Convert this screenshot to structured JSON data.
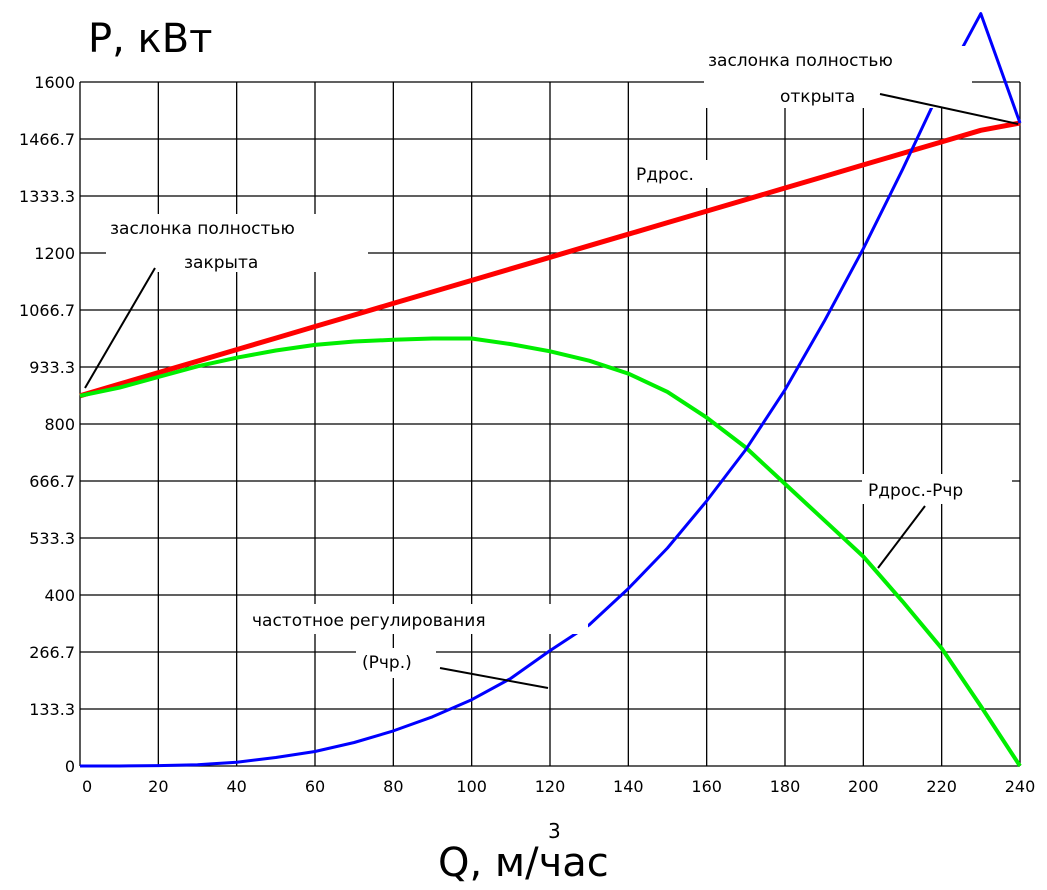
{
  "chart_data": {
    "type": "line",
    "ylabel": "P, кВт",
    "xlabel": "Q, м/час",
    "xlabel_superscript": "3",
    "xlim": [
      0,
      240
    ],
    "ylim": [
      0,
      1600
    ],
    "x_ticks": [
      "0",
      "20",
      "40",
      "60",
      "80",
      "100",
      "120",
      "140",
      "160",
      "180",
      "200",
      "220",
      "240"
    ],
    "y_ticks": [
      "0",
      "133.3",
      "266.7",
      "400",
      "533.3",
      "666.7",
      "800",
      "933.3",
      "1066.7",
      "1200",
      "1333.3",
      "1466.7",
      "1600"
    ],
    "grid": true,
    "x": [
      0,
      10,
      20,
      30,
      40,
      50,
      60,
      70,
      80,
      90,
      100,
      110,
      120,
      130,
      140,
      150,
      160,
      170,
      180,
      190,
      200,
      210,
      220,
      230,
      240
    ],
    "series": [
      {
        "color": "#ff0000",
        "values": [
          866,
          893,
          920,
          947,
          974,
          1001,
          1028,
          1055,
          1082,
          1109,
          1136,
          1163,
          1190,
          1217,
          1244,
          1271,
          1298,
          1325,
          1352,
          1379,
          1406,
          1433,
          1460,
          1487,
          1504
        ]
      },
      {
        "color": "#00ee00",
        "values": [
          866,
          885,
          910,
          935,
          955,
          972,
          985,
          993,
          997,
          1000,
          1000,
          987,
          970,
          948,
          918,
          875,
          815,
          745,
          660,
          575,
          490,
          385,
          275,
          140,
          0
        ]
      },
      {
        "color": "#0000ff",
        "values": [
          0,
          0,
          1,
          3,
          9,
          20,
          34,
          55,
          82,
          115,
          155,
          205,
          270,
          330,
          415,
          510,
          620,
          740,
          880,
          1040,
          1210,
          1395,
          1590,
          1760,
          1504
        ]
      }
    ],
    "annotations": {
      "closed_line1": "заслонка полностью",
      "closed_line2": "закрыта",
      "open_line1": "заслонка полностью",
      "open_line2": "открыта",
      "p_throttle": "Pдрос.",
      "p_diff": "Pдрос.-Pчр",
      "freq_line1": "частотное регулирования",
      "freq_line2": "(Pчр.)"
    }
  }
}
